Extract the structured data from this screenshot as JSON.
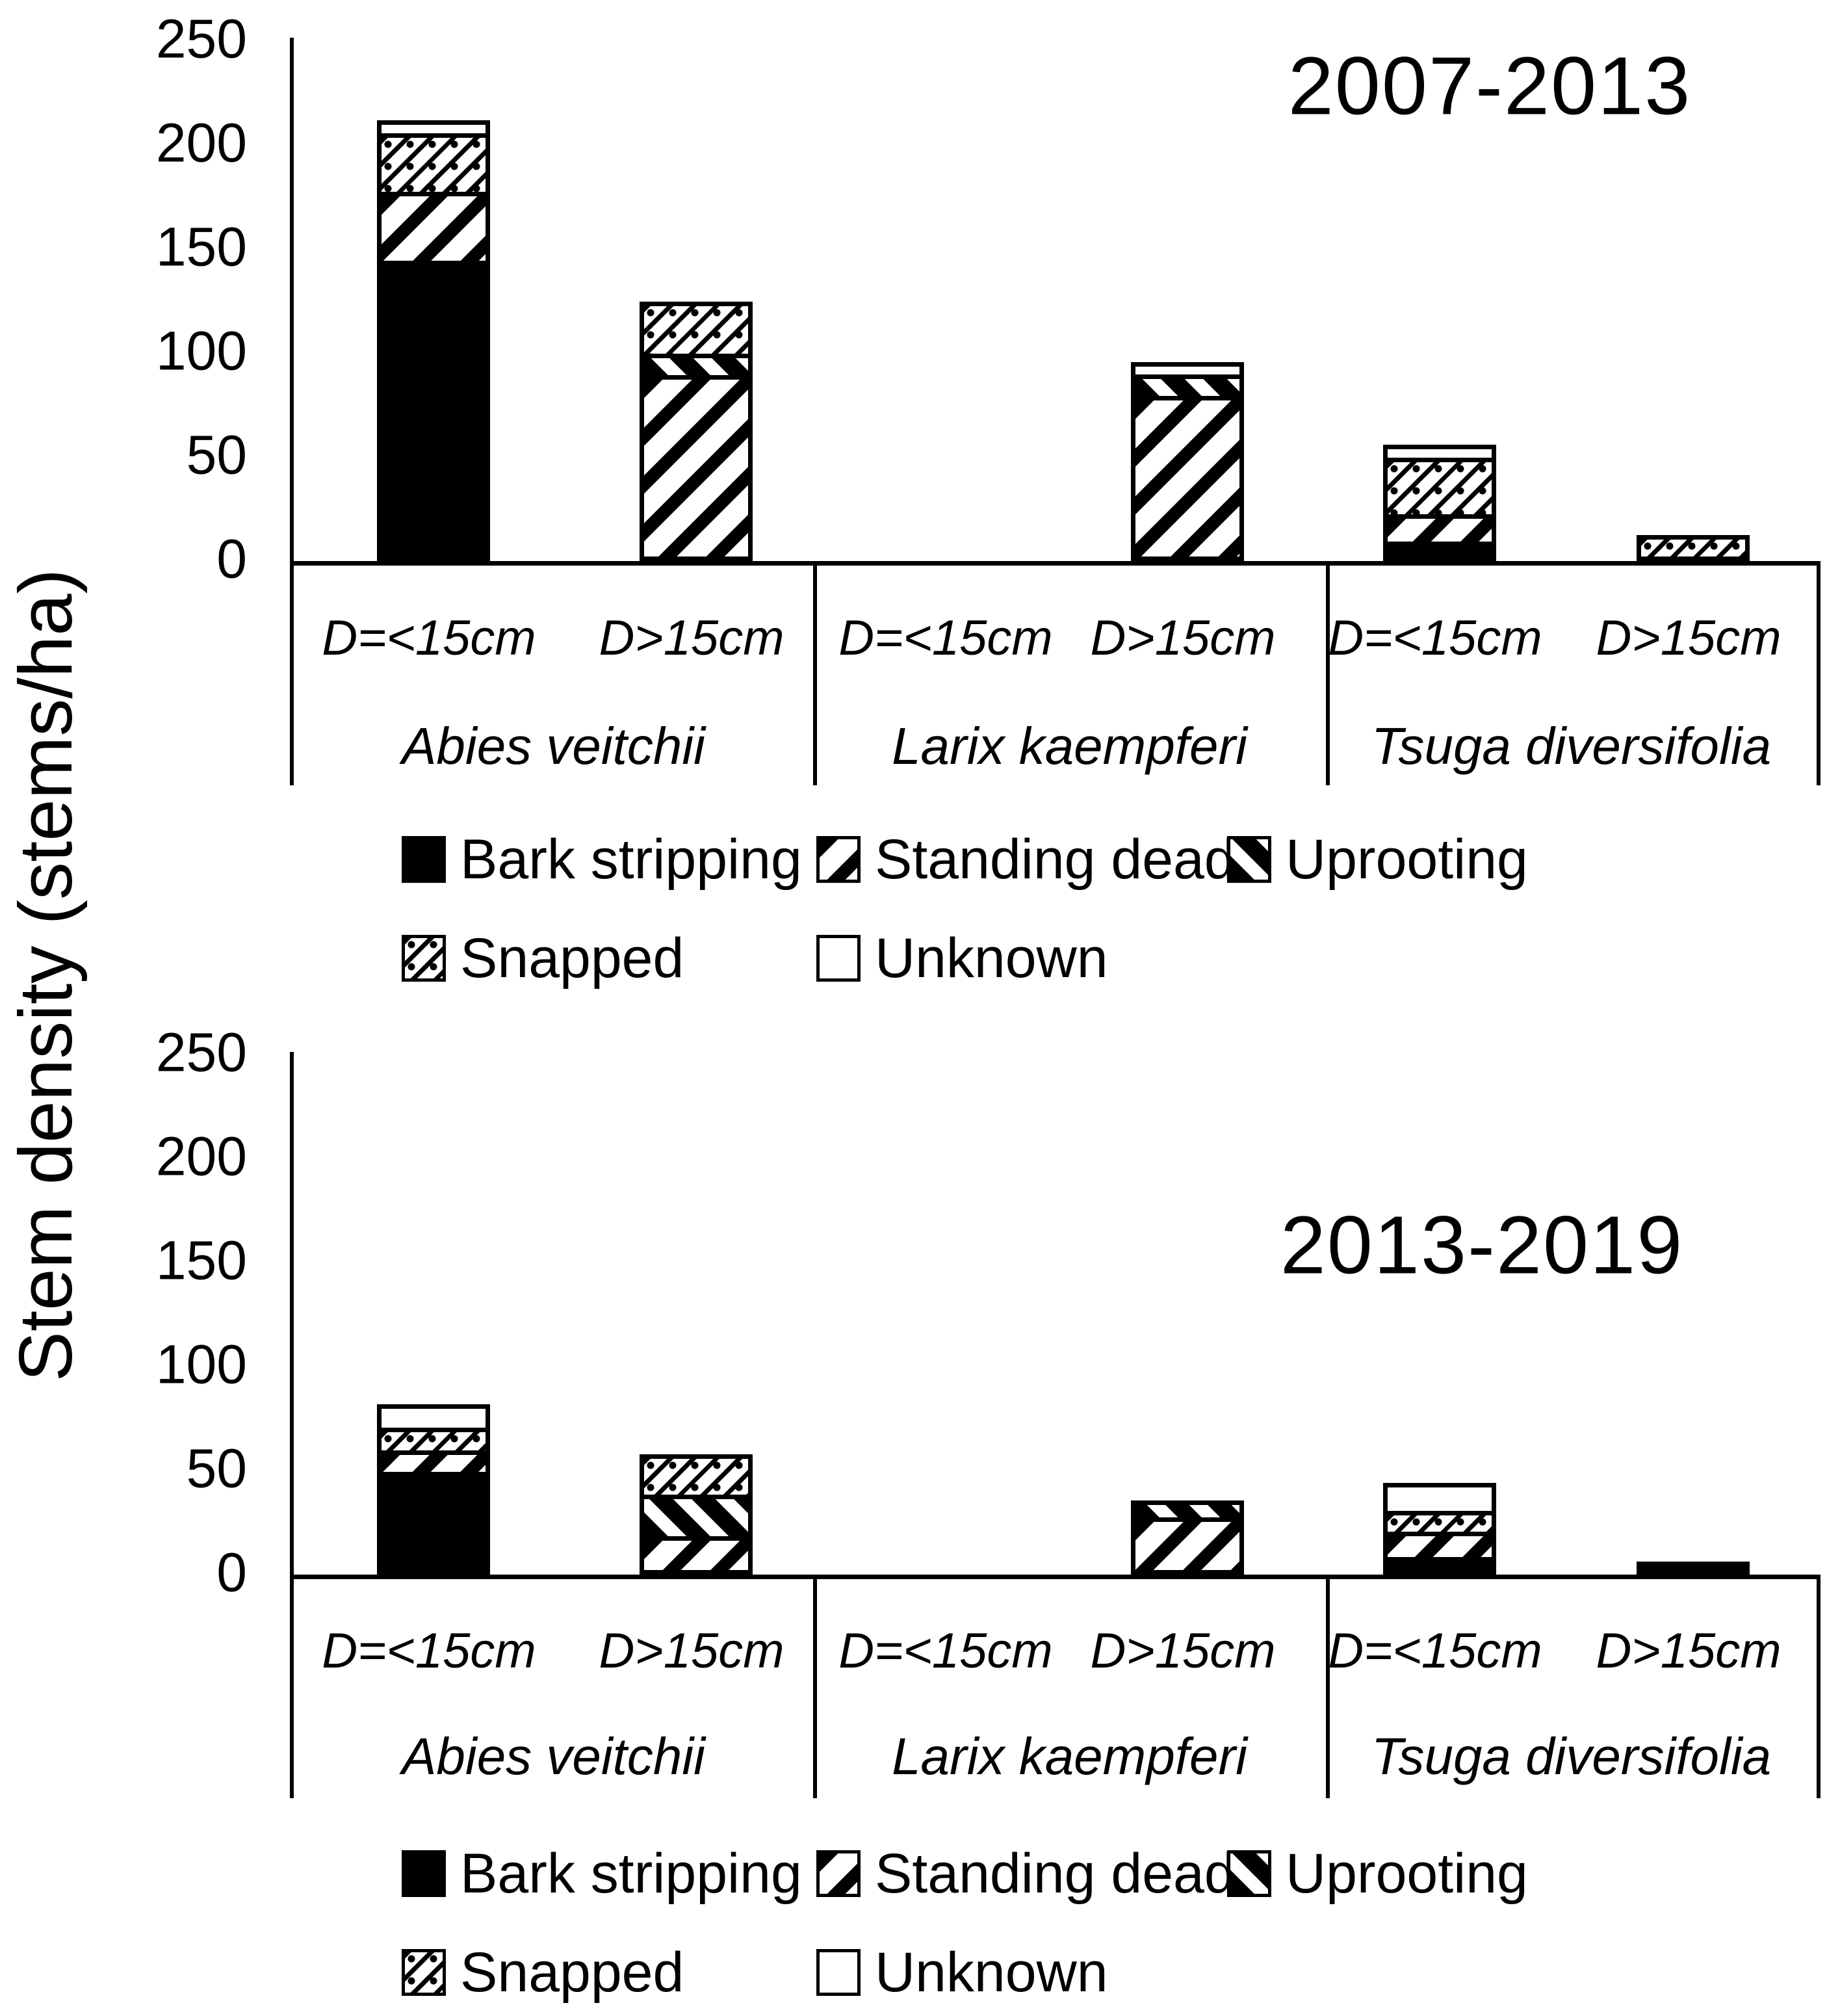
{
  "ylabel": "Stem density (stems/ha)",
  "legend": {
    "items": [
      {
        "label": "Bark stripping",
        "pattern": "bark"
      },
      {
        "label": "Standing dead",
        "pattern": "standing"
      },
      {
        "label": "Uprooting",
        "pattern": "uprooting"
      },
      {
        "label": "Snapped",
        "pattern": "snapped"
      },
      {
        "label": "Unknown",
        "pattern": "unknown"
      }
    ]
  },
  "chart_data": [
    {
      "type": "stacked-bar",
      "title": "2007-2013",
      "ylim": [
        0,
        250
      ],
      "yticks": [
        250,
        200,
        150,
        100,
        50,
        0
      ],
      "legend_position": "bottom",
      "groups": [
        {
          "species": "Abies veitchii",
          "bars": [
            {
              "label": "D=<15cm",
              "total": 201,
              "segments": [
                {
                  "category": "Bark stripping",
                  "value": 140
                },
                {
                  "category": "Standing dead",
                  "value": 31
                },
                {
                  "category": "Snapped",
                  "value": 26
                },
                {
                  "category": "Unknown",
                  "value": 4
                }
              ]
            },
            {
              "label": "D>15cm",
              "total": 116,
              "segments": [
                {
                  "category": "Standing dead",
                  "value": 85
                },
                {
                  "category": "Uprooting",
                  "value": 8
                },
                {
                  "category": "Snapped",
                  "value": 23
                }
              ]
            }
          ]
        },
        {
          "species": "Larix kaempferi",
          "bars": [
            {
              "label": "D=<15cm",
              "total": 0,
              "segments": []
            },
            {
              "label": "D>15cm",
              "total": 87,
              "segments": [
                {
                  "category": "Standing dead",
                  "value": 75
                },
                {
                  "category": "Uprooting",
                  "value": 8
                },
                {
                  "category": "Unknown",
                  "value": 4
                }
              ]
            }
          ]
        },
        {
          "species": "Tsuga diversifolia",
          "bars": [
            {
              "label": "D=<15cm",
              "total": 45,
              "segments": [
                {
                  "category": "Bark stripping",
                  "value": 5
                },
                {
                  "category": "Standing dead",
                  "value": 11
                },
                {
                  "category": "Snapped",
                  "value": 25
                },
                {
                  "category": "Unknown",
                  "value": 4
                }
              ]
            },
            {
              "label": "D>15cm",
              "total": 8,
              "segments": [
                {
                  "category": "Snapped",
                  "value": 8
                }
              ]
            }
          ]
        }
      ]
    },
    {
      "type": "stacked-bar",
      "title": "2013-2019",
      "ylim": [
        0,
        250
      ],
      "yticks": [
        250,
        200,
        150,
        100,
        50,
        0
      ],
      "legend_position": "bottom",
      "groups": [
        {
          "species": "Abies veitchii",
          "bars": [
            {
              "label": "D=<15cm",
              "total": 71,
              "segments": [
                {
                  "category": "Bark stripping",
                  "value": 45
                },
                {
                  "category": "Standing dead",
                  "value": 8
                },
                {
                  "category": "Snapped",
                  "value": 9
                },
                {
                  "category": "Unknown",
                  "value": 9
                }
              ]
            },
            {
              "label": "D>15cm",
              "total": 49,
              "segments": [
                {
                  "category": "Standing dead",
                  "value": 14
                },
                {
                  "category": "Uprooting",
                  "value": 18
                },
                {
                  "category": "Snapped",
                  "value": 17
                }
              ]
            }
          ]
        },
        {
          "species": "Larix kaempferi",
          "bars": [
            {
              "label": "D=<15cm",
              "total": 0,
              "segments": []
            },
            {
              "label": "D>15cm",
              "total": 29,
              "segments": [
                {
                  "category": "Standing dead",
                  "value": 23
                },
                {
                  "category": "Uprooting",
                  "value": 6
                }
              ]
            }
          ]
        },
        {
          "species": "Tsuga diversifolia",
          "bars": [
            {
              "label": "D=<15cm",
              "total": 33,
              "segments": [
                {
                  "category": "Bark stripping",
                  "value": 4
                },
                {
                  "category": "Standing dead",
                  "value": 10
                },
                {
                  "category": "Snapped",
                  "value": 8
                },
                {
                  "category": "Unknown",
                  "value": 11
                }
              ]
            },
            {
              "label": "D>15cm",
              "total": 2,
              "segments": [
                {
                  "category": "Bark stripping",
                  "value": 2
                }
              ]
            }
          ]
        }
      ]
    }
  ],
  "colors": {
    "foreground": "#000000",
    "background": "#ffffff"
  }
}
